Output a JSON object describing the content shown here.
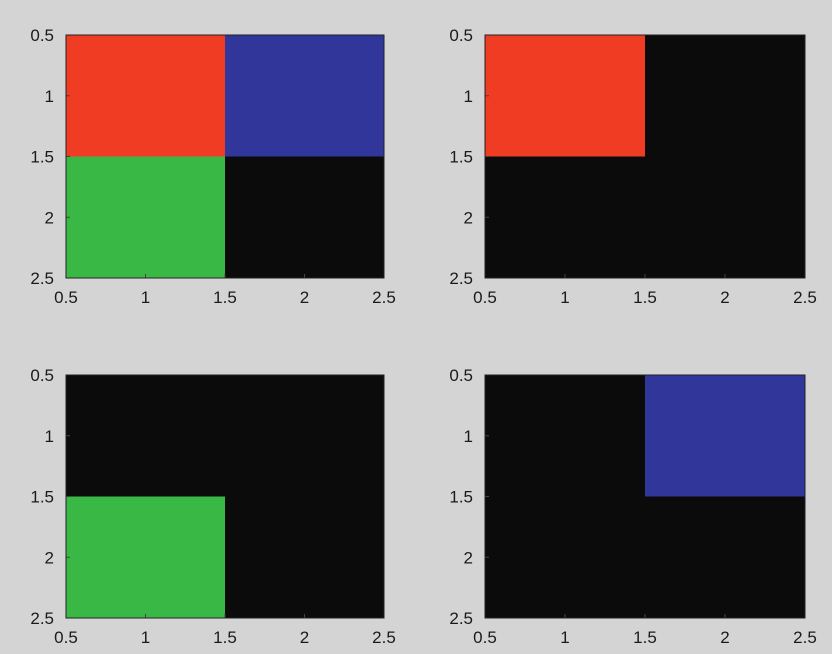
{
  "chart_data": [
    {
      "type": "heatmap",
      "xlim": [
        0.5,
        2.5
      ],
      "ylim": [
        0.5,
        2.5
      ],
      "y_reversed": true,
      "xticks": [
        "0.5",
        "1",
        "1.5",
        "2",
        "2.5"
      ],
      "yticks": [
        "0.5",
        "1",
        "1.5",
        "2",
        "2.5"
      ],
      "cells": [
        {
          "row": 1,
          "col": 1,
          "color": "#f03c22"
        },
        {
          "row": 1,
          "col": 2,
          "color": "#30369a"
        },
        {
          "row": 2,
          "col": 1,
          "color": "#3ab845"
        },
        {
          "row": 2,
          "col": 2,
          "color": "#0b0b0b"
        }
      ]
    },
    {
      "type": "heatmap",
      "xlim": [
        0.5,
        2.5
      ],
      "ylim": [
        0.5,
        2.5
      ],
      "y_reversed": true,
      "xticks": [
        "0.5",
        "1",
        "1.5",
        "2",
        "2.5"
      ],
      "yticks": [
        "0.5",
        "1",
        "1.5",
        "2",
        "2.5"
      ],
      "cells": [
        {
          "row": 1,
          "col": 1,
          "color": "#f03c22"
        },
        {
          "row": 1,
          "col": 2,
          "color": "#0b0b0b"
        },
        {
          "row": 2,
          "col": 1,
          "color": "#0b0b0b"
        },
        {
          "row": 2,
          "col": 2,
          "color": "#0b0b0b"
        }
      ]
    },
    {
      "type": "heatmap",
      "xlim": [
        0.5,
        2.5
      ],
      "ylim": [
        0.5,
        2.5
      ],
      "y_reversed": true,
      "xticks": [
        "0.5",
        "1",
        "1.5",
        "2",
        "2.5"
      ],
      "yticks": [
        "0.5",
        "1",
        "1.5",
        "2",
        "2.5"
      ],
      "cells": [
        {
          "row": 1,
          "col": 1,
          "color": "#0b0b0b"
        },
        {
          "row": 1,
          "col": 2,
          "color": "#0b0b0b"
        },
        {
          "row": 2,
          "col": 1,
          "color": "#3ab845"
        },
        {
          "row": 2,
          "col": 2,
          "color": "#0b0b0b"
        }
      ]
    },
    {
      "type": "heatmap",
      "xlim": [
        0.5,
        2.5
      ],
      "ylim": [
        0.5,
        2.5
      ],
      "y_reversed": true,
      "xticks": [
        "0.5",
        "1",
        "1.5",
        "2",
        "2.5"
      ],
      "yticks": [
        "0.5",
        "1",
        "1.5",
        "2",
        "2.5"
      ],
      "cells": [
        {
          "row": 1,
          "col": 1,
          "color": "#0b0b0b"
        },
        {
          "row": 1,
          "col": 2,
          "color": "#30369a"
        },
        {
          "row": 2,
          "col": 1,
          "color": "#0b0b0b"
        },
        {
          "row": 2,
          "col": 2,
          "color": "#0b0b0b"
        }
      ]
    }
  ]
}
